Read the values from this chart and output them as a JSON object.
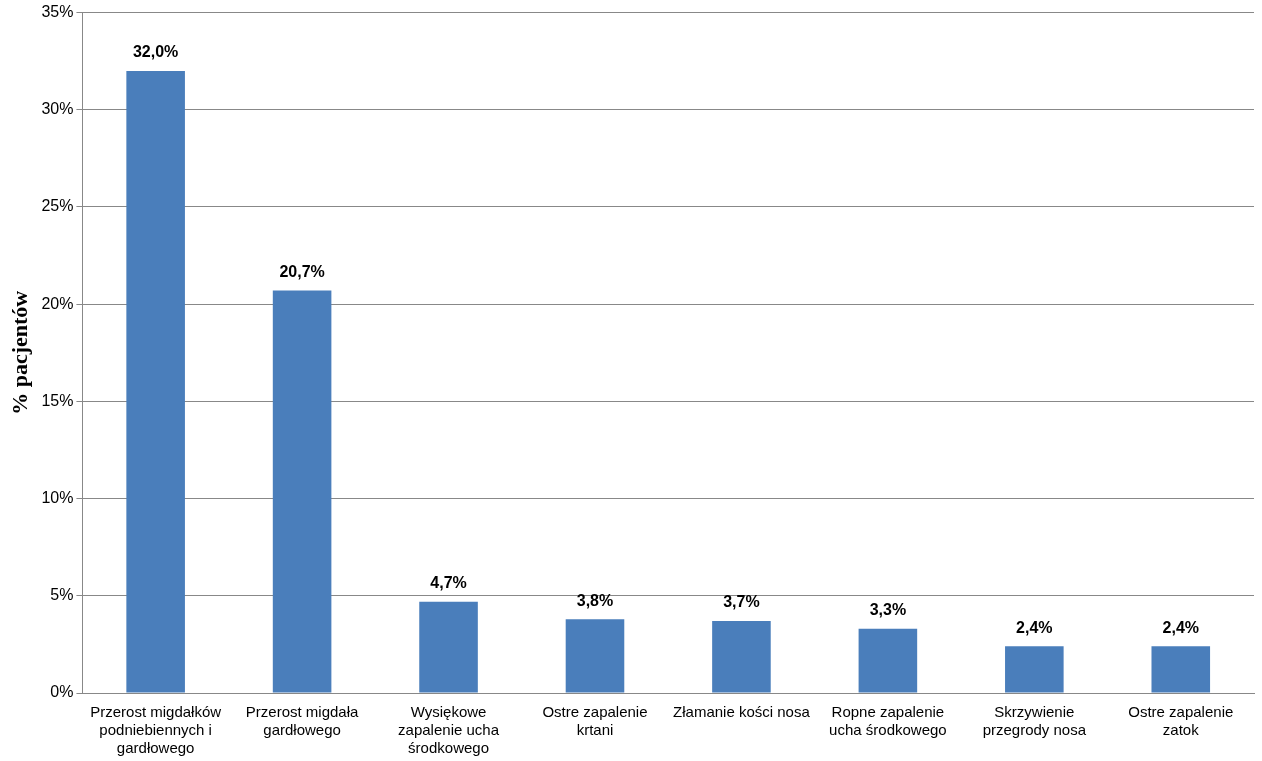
{
  "chart_data": {
    "type": "bar",
    "ylabel": "% pacjentów",
    "categories": [
      "Przerost migdałków podniebiennych i gardłowego",
      "Przerost migdała gardłowego",
      "Wysiękowe zapalenie ucha środkowego",
      "Ostre zapalenie krtani",
      "Złamanie kości nosa",
      "Ropne zapalenie ucha środkowego",
      "Skrzywienie przegrody nosa",
      "Ostre zapalenie zatok"
    ],
    "values": [
      32.0,
      20.7,
      4.7,
      3.8,
      3.7,
      3.3,
      2.4,
      2.4
    ],
    "value_labels": [
      "32,0%",
      "20,7%",
      "4,7%",
      "3,8%",
      "3,7%",
      "3,3%",
      "2,4%",
      "2,4%"
    ],
    "color": "#4a7ebb",
    "ylim": [
      0,
      35
    ],
    "yticks": [
      {
        "value": 0,
        "label": "0%"
      },
      {
        "value": 5,
        "label": "5%"
      },
      {
        "value": 10,
        "label": "10%"
      },
      {
        "value": 15,
        "label": "15%"
      },
      {
        "value": 20,
        "label": "20%"
      },
      {
        "value": 25,
        "label": "25%"
      },
      {
        "value": 30,
        "label": "30%"
      },
      {
        "value": 35,
        "label": "35%"
      }
    ],
    "grid": "y",
    "legend": false
  }
}
